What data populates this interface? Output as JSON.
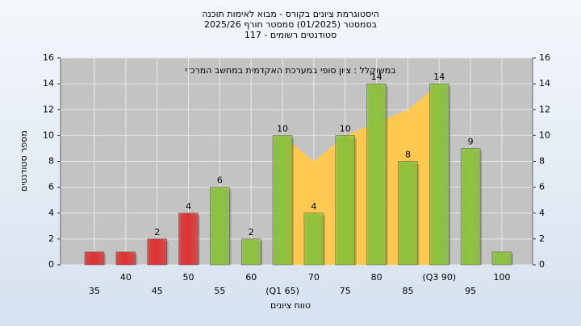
{
  "chart_data": {
    "type": "bar",
    "title": [
      "היסטוגרמת ציונים בקורס - מבוא לאימות תוכנה",
      "בסמסטר  (01/2025)  סמסטר חורף 2025/26",
      "סטודנטים רשומים - 117"
    ],
    "annotation": "במשוקלל : ציון סופי במערכת האקדמית במחשב המרכזי",
    "x_label": "טווח ציונים",
    "y_label": "מספר סטודנטים",
    "categories": [
      "35",
      "40",
      "45",
      "50",
      "55",
      "60",
      "(Q1 65)",
      "70",
      "75",
      "80",
      "85",
      "(Q3 90)",
      "95",
      "100"
    ],
    "values": [
      1,
      1,
      2,
      4,
      6,
      2,
      10,
      4,
      10,
      14,
      8,
      14,
      9,
      1
    ],
    "value_labels": [
      null,
      null,
      "2",
      "4",
      "6",
      "2",
      "10",
      "4",
      "10",
      "14",
      "8",
      "14",
      "9",
      null
    ],
    "colors": [
      "#e03030",
      "#e03030",
      "#e03030",
      "#e03030",
      "#8cc43c",
      "#8cc43c",
      "#8cc43c",
      "#8cc43c",
      "#8cc43c",
      "#8cc43c",
      "#8cc43c",
      "#8cc43c",
      "#8cc43c",
      "#8cc43c"
    ],
    "area": {
      "color": "#ffc850",
      "values": [
        null,
        null,
        null,
        null,
        null,
        null,
        10,
        8,
        10,
        11,
        12,
        14,
        null,
        null
      ]
    },
    "ylim": [
      0,
      16
    ],
    "yticks": [
      0,
      2,
      4,
      6,
      8,
      10,
      12,
      14,
      16
    ],
    "y2lim": [
      0,
      16
    ],
    "y2ticks": [
      0,
      2,
      4,
      6,
      8,
      10,
      12,
      14,
      16
    ],
    "grid": true
  }
}
